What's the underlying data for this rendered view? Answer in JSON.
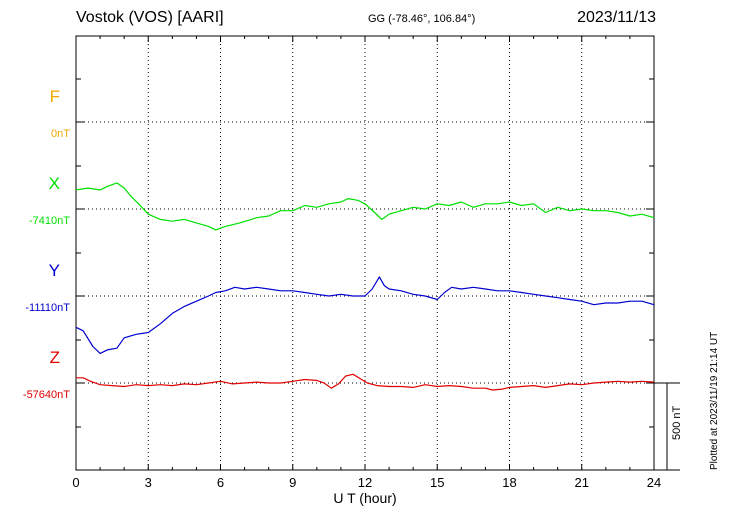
{
  "header": {
    "title": "Vostok (VOS)  [AARI]",
    "coords": "GG (-78.46°, 106.84°)",
    "date": "2023/11/13"
  },
  "annotations": {
    "scale_label": "500 nT",
    "plotted_label": "Plotted at 2023/11/19 21:14 UT"
  },
  "colors": {
    "F": "#f0a800",
    "X": "#00e000",
    "Y": "#0000d0",
    "Z": "#e00000",
    "axis": "#000000"
  },
  "channels": [
    {
      "name": "F",
      "base_label": "0nT"
    },
    {
      "name": "X",
      "base_label": "-7410nT"
    },
    {
      "name": "Y",
      "base_label": "-11110nT"
    },
    {
      "name": "Z",
      "base_label": "-57640nT"
    }
  ],
  "chart_data": {
    "type": "line",
    "xlabel": "U T (hour)",
    "xlim": [
      0,
      24
    ],
    "x_ticks": [
      "0",
      "3",
      "6",
      "9",
      "12",
      "15",
      "18",
      "21",
      "24"
    ],
    "scale_nT": 500,
    "series": [
      {
        "name": "X",
        "baseline": -7410,
        "t": [
          0,
          0.5,
          1.0,
          1.3,
          1.7,
          2.0,
          2.3,
          2.6,
          3.0,
          3.5,
          4.0,
          4.5,
          5.0,
          5.5,
          5.8,
          6.2,
          6.8,
          7.5,
          8.0,
          8.5,
          9.0,
          9.5,
          10.0,
          10.5,
          11.0,
          11.3,
          11.7,
          12.0,
          12.4,
          12.7,
          13.0,
          13.5,
          14.0,
          14.5,
          15.0,
          15.5,
          16.0,
          16.5,
          17.0,
          17.5,
          18.0,
          18.5,
          19.0,
          19.5,
          20.0,
          20.5,
          21.0,
          21.5,
          22.0,
          22.5,
          23.0,
          23.5,
          24.0
        ],
        "values": [
          -7300,
          -7290,
          -7300,
          -7280,
          -7260,
          -7290,
          -7340,
          -7380,
          -7440,
          -7470,
          -7480,
          -7470,
          -7490,
          -7510,
          -7530,
          -7510,
          -7490,
          -7460,
          -7450,
          -7420,
          -7420,
          -7390,
          -7400,
          -7380,
          -7370,
          -7350,
          -7360,
          -7380,
          -7430,
          -7470,
          -7440,
          -7420,
          -7400,
          -7410,
          -7380,
          -7390,
          -7370,
          -7400,
          -7380,
          -7380,
          -7370,
          -7390,
          -7380,
          -7430,
          -7400,
          -7420,
          -7410,
          -7420,
          -7420,
          -7430,
          -7450,
          -7440,
          -7460
        ]
      },
      {
        "name": "Y",
        "baseline": -11110,
        "t": [
          0,
          0.3,
          0.7,
          1.0,
          1.3,
          1.7,
          2.0,
          2.5,
          3.0,
          3.5,
          4.0,
          4.5,
          5.0,
          5.5,
          5.8,
          6.2,
          6.6,
          7.0,
          7.5,
          8.0,
          8.5,
          9.0,
          9.5,
          10.0,
          10.5,
          11.0,
          11.5,
          12.0,
          12.3,
          12.6,
          12.8,
          13.0,
          13.5,
          14.0,
          14.5,
          15.0,
          15.3,
          15.6,
          16.0,
          16.5,
          17.0,
          17.5,
          18.0,
          18.5,
          19.0,
          19.5,
          20.0,
          20.5,
          21.0,
          21.5,
          22.0,
          22.5,
          23.0,
          23.5,
          24.0
        ],
        "values": [
          -11290,
          -11310,
          -11400,
          -11440,
          -11420,
          -11410,
          -11350,
          -11330,
          -11320,
          -11270,
          -11210,
          -11170,
          -11140,
          -11110,
          -11090,
          -11080,
          -11060,
          -11070,
          -11060,
          -11070,
          -11080,
          -11080,
          -11090,
          -11100,
          -11110,
          -11100,
          -11110,
          -11110,
          -11070,
          -11000,
          -11050,
          -11070,
          -11080,
          -11100,
          -11110,
          -11130,
          -11090,
          -11060,
          -11070,
          -11060,
          -11070,
          -11080,
          -11080,
          -11090,
          -11100,
          -11110,
          -11120,
          -11130,
          -11140,
          -11160,
          -11150,
          -11150,
          -11140,
          -11140,
          -11160
        ]
      },
      {
        "name": "Z",
        "baseline": -57640,
        "t": [
          0,
          0.3,
          0.6,
          1.0,
          1.5,
          2.0,
          2.5,
          3.0,
          3.5,
          4.0,
          4.5,
          5.0,
          5.5,
          6.0,
          6.5,
          7.0,
          7.5,
          8.0,
          8.5,
          9.0,
          9.5,
          10.0,
          10.3,
          10.6,
          10.9,
          11.2,
          11.5,
          11.8,
          12.1,
          12.5,
          13.0,
          13.5,
          14.0,
          14.5,
          15.0,
          15.5,
          16.0,
          16.5,
          17.0,
          17.3,
          17.7,
          18.0,
          18.5,
          19.0,
          19.5,
          20.0,
          20.5,
          21.0,
          21.5,
          22.0,
          22.5,
          23.0,
          23.5,
          24.0
        ],
        "values": [
          -57610,
          -57610,
          -57630,
          -57650,
          -57655,
          -57660,
          -57650,
          -57655,
          -57650,
          -57655,
          -57645,
          -57650,
          -57640,
          -57630,
          -57645,
          -57640,
          -57635,
          -57640,
          -57640,
          -57630,
          -57620,
          -57625,
          -57640,
          -57670,
          -57645,
          -57600,
          -57590,
          -57615,
          -57640,
          -57655,
          -57660,
          -57660,
          -57665,
          -57650,
          -57660,
          -57655,
          -57660,
          -57670,
          -57670,
          -57680,
          -57675,
          -57665,
          -57660,
          -57655,
          -57665,
          -57655,
          -57645,
          -57650,
          -57640,
          -57635,
          -57630,
          -57635,
          -57630,
          -57635
        ]
      }
    ]
  }
}
